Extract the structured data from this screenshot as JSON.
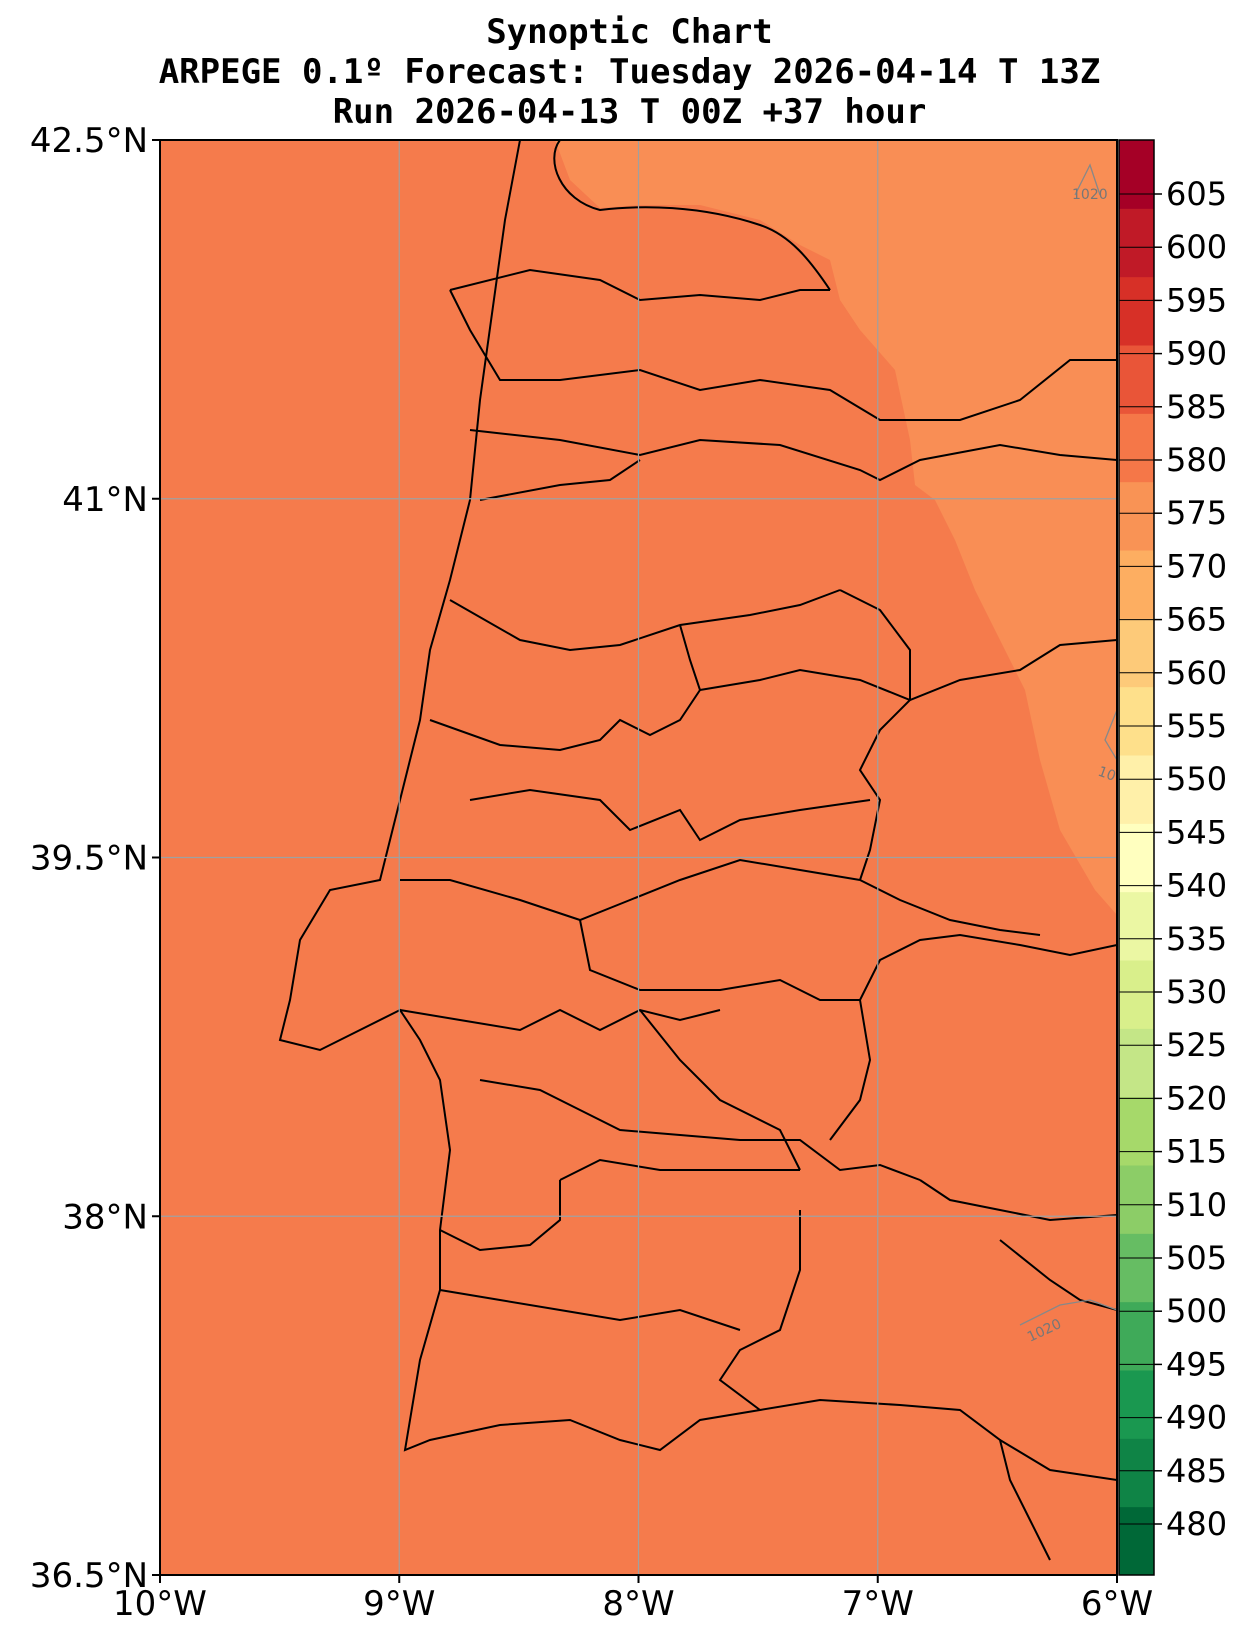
{
  "title": {
    "line1": "Synoptic Chart",
    "line2": "ARPEGE 0.1º Forecast: Tuesday 2026-04-14 T 13Z",
    "line3": "Run 2026-04-13 T 00Z +37 hour"
  },
  "axes": {
    "x_ticks": [
      "10°W",
      "9°W",
      "8°W",
      "7°W",
      "6°W"
    ],
    "y_ticks": [
      "42.5°N",
      "41°N",
      "39.5°N",
      "38°N",
      "36.5°N"
    ],
    "lon_range": [
      -10,
      -6
    ],
    "lat_range": [
      36.5,
      42.5
    ],
    "grid": true
  },
  "field": {
    "base_color": "#f57b4c",
    "high_color": "#f98e55"
  },
  "isobars": {
    "label_north": "1020",
    "label_east": "10",
    "label_south": "1020"
  },
  "colorbar": {
    "labels": [
      "605",
      "600",
      "595",
      "590",
      "585",
      "580",
      "575",
      "570",
      "565",
      "560",
      "555",
      "550",
      "545",
      "540",
      "535",
      "530",
      "525",
      "520",
      "515",
      "510",
      "505",
      "500",
      "495",
      "490",
      "485",
      "480"
    ],
    "colors": [
      "#006837",
      "#0f8446",
      "#1a9850",
      "#3faa59",
      "#66bd63",
      "#8ccd67",
      "#a6d96a",
      "#c4e687",
      "#d9ef8b",
      "#ebf7a3",
      "#ffffbf",
      "#fff0a9",
      "#fee08b",
      "#fdca79",
      "#fdae61",
      "#f99355",
      "#f57748",
      "#e95538",
      "#d73027",
      "#c01a27",
      "#a50026"
    ]
  }
}
